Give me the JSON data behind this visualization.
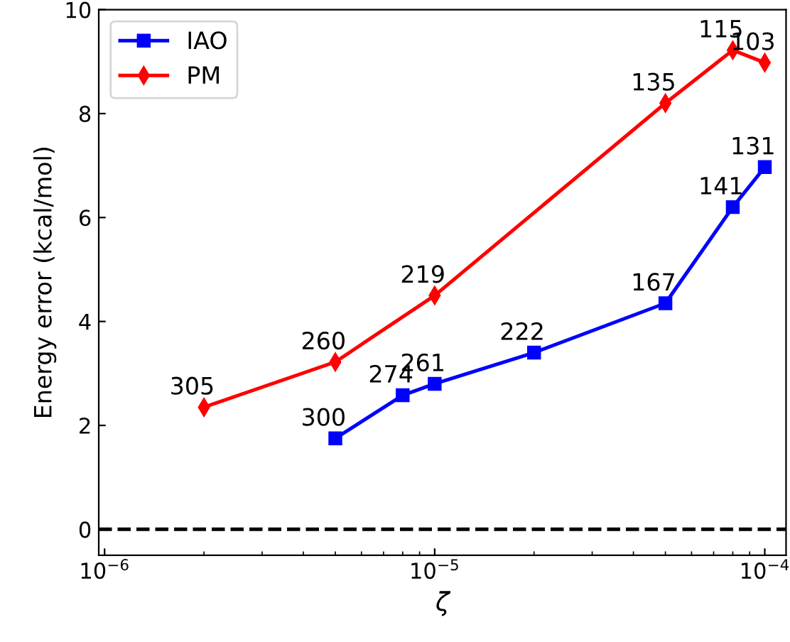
{
  "chart_data": {
    "type": "line",
    "xlabel": "ζ",
    "ylabel": "Energy error (kcal/mol)",
    "log": "x",
    "xlim": [
      9.6e-07,
      0.000116
    ],
    "ylim": [
      -0.5,
      10
    ],
    "xticks": [
      {
        "value": 1e-06,
        "label": "10$^{−6}$"
      },
      {
        "value": 1e-05,
        "label": "10$^{−5}$"
      },
      {
        "value": 0.0001,
        "label": "10$^{−4}$"
      }
    ],
    "yticks": [
      0,
      2,
      4,
      6,
      8,
      10
    ],
    "legend": "top left",
    "grid": false,
    "series": [
      {
        "name": "IAO",
        "color": "#0000ff",
        "marker": "square",
        "x": [
          5e-06,
          8e-06,
          1e-05,
          2e-05,
          5e-05,
          8e-05,
          0.0001
        ],
        "values": [
          1.75,
          2.58,
          2.8,
          3.4,
          4.35,
          6.2,
          6.97
        ]
      },
      {
        "name": "PM",
        "color": "#ff0000",
        "marker": "diamond",
        "x": [
          2e-06,
          5e-06,
          1e-05,
          5e-05,
          8e-05,
          0.0001
        ],
        "values": [
          2.35,
          3.22,
          4.5,
          8.2,
          9.22,
          8.98
        ]
      }
    ],
    "ref_lines": [
      {
        "axis": "y",
        "value": 0,
        "color": "#000000",
        "line_style": "dashed"
      }
    ],
    "annotations": [
      {
        "text": "300",
        "x": 5e-06,
        "y": 1.75
      },
      {
        "text": "274",
        "x": 8e-06,
        "y": 2.58
      },
      {
        "text": "261",
        "x": 1e-05,
        "y": 2.8
      },
      {
        "text": "222",
        "x": 2e-05,
        "y": 3.4
      },
      {
        "text": "167",
        "x": 5e-05,
        "y": 4.35
      },
      {
        "text": "141",
        "x": 8e-05,
        "y": 6.2
      },
      {
        "text": "131",
        "x": 0.0001,
        "y": 6.97
      },
      {
        "text": "305",
        "x": 2e-06,
        "y": 2.35
      },
      {
        "text": "260",
        "x": 5e-06,
        "y": 3.22
      },
      {
        "text": "219",
        "x": 1e-05,
        "y": 4.5
      },
      {
        "text": "135",
        "x": 5e-05,
        "y": 8.2
      },
      {
        "text": "115",
        "x": 8e-05,
        "y": 9.22
      },
      {
        "text": "103",
        "x": 0.0001,
        "y": 8.98
      }
    ]
  }
}
